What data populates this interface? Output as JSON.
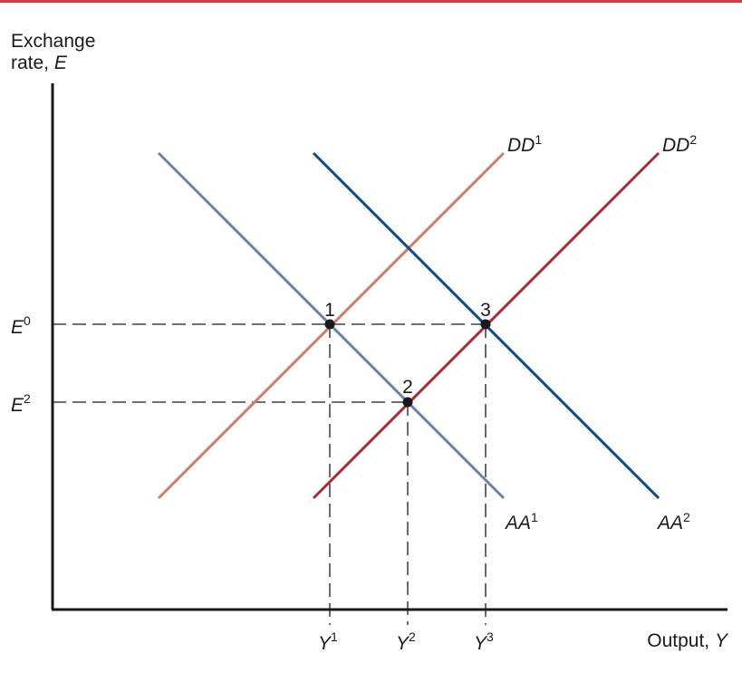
{
  "colors": {
    "top_rule": "#c8403f",
    "axis": "#1a1a1a",
    "guide": "#1a1a1a",
    "dd1": "#cf7d6a",
    "dd2": "#b22730",
    "aa1": "#6f7fb6",
    "aa2": "#0d4796"
  },
  "axes": {
    "y_label_line1": "Exchange",
    "y_label_line2_prefix": "rate, ",
    "y_label_line2_var": "E",
    "x_label_prefix": "Output, ",
    "x_label_var": "Y"
  },
  "curves": {
    "dd1": {
      "base": "DD",
      "sup": "1"
    },
    "dd2": {
      "base": "DD",
      "sup": "2"
    },
    "aa1": {
      "base": "AA",
      "sup": "1"
    },
    "aa2": {
      "base": "AA",
      "sup": "2"
    }
  },
  "equilibria": [
    {
      "label": "1"
    },
    {
      "label": "2"
    },
    {
      "label": "3"
    }
  ],
  "exchange_rates": [
    {
      "base": "E",
      "sup": "0"
    },
    {
      "base": "E",
      "sup": "2"
    }
  ],
  "outputs": [
    {
      "base": "Y",
      "sup": "1"
    },
    {
      "base": "Y",
      "sup": "2"
    },
    {
      "base": "Y",
      "sup": "3"
    }
  ]
}
